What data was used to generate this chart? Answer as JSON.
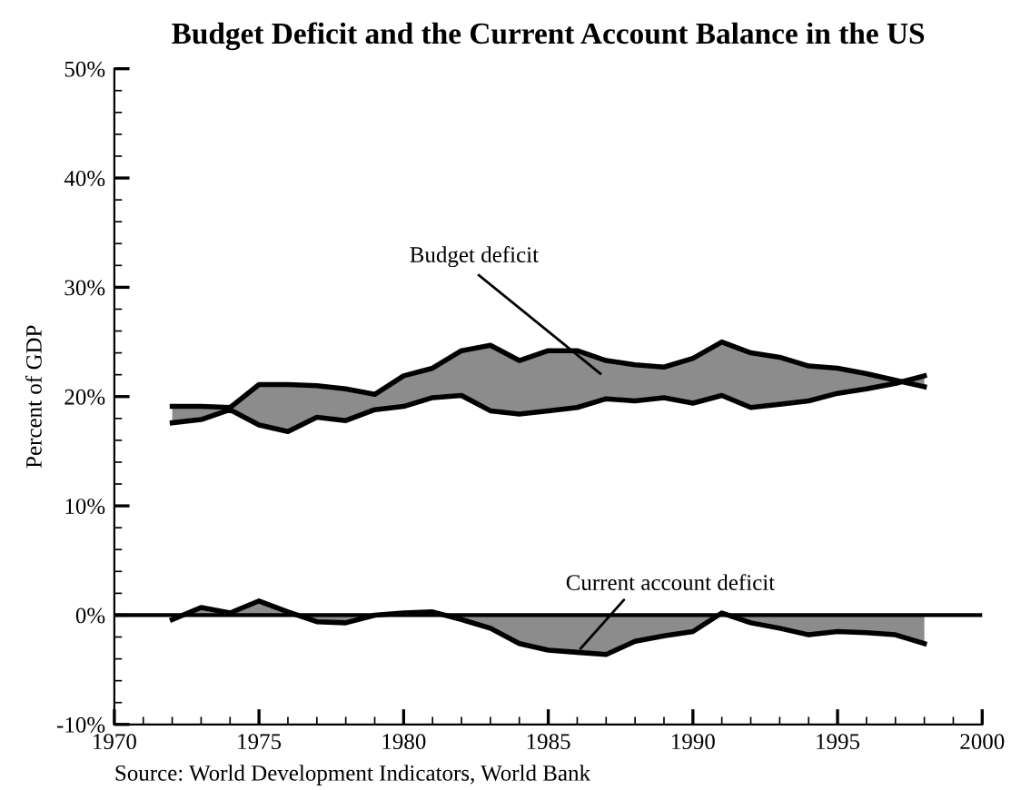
{
  "chart_data": {
    "type": "line",
    "title": "Budget Deficit and the Current Account Balance in the US",
    "ylabel": "Percent of GDP",
    "x": [
      1972,
      1973,
      1974,
      1975,
      1976,
      1977,
      1978,
      1979,
      1980,
      1981,
      1982,
      1983,
      1984,
      1985,
      1986,
      1987,
      1988,
      1989,
      1990,
      1991,
      1992,
      1993,
      1994,
      1995,
      1996,
      1997,
      1998
    ],
    "series": [
      {
        "color": "#000000",
        "values": [
          19.1,
          19.1,
          19.0,
          21.1,
          21.1,
          21.0,
          20.7,
          20.2,
          21.9,
          22.6,
          24.2,
          24.7,
          23.3,
          24.2,
          24.2,
          23.3,
          22.9,
          22.7,
          23.5,
          25.0,
          24.0,
          23.6,
          22.8,
          22.6,
          22.1,
          21.5,
          20.9
        ],
        "lower": [
          17.6,
          17.9,
          18.8,
          17.4,
          16.8,
          18.1,
          17.8,
          18.8,
          19.1,
          19.9,
          20.1,
          18.7,
          18.4,
          18.7,
          19.0,
          19.8,
          19.6,
          19.9,
          19.4,
          20.1,
          19.0,
          19.3,
          19.6,
          20.3,
          20.7,
          21.2,
          21.9
        ],
        "upper": [
          19.1,
          19.1,
          19.0,
          21.1,
          21.1,
          21.0,
          20.7,
          20.2,
          21.9,
          22.6,
          24.2,
          24.7,
          23.3,
          24.2,
          24.2,
          23.3,
          22.9,
          22.7,
          23.5,
          25.0,
          24.0,
          23.6,
          22.8,
          22.6,
          22.1,
          21.5,
          20.9
        ]
      },
      {
        "color": "#000000",
        "values": [
          17.6,
          17.9,
          18.8,
          17.4,
          16.8,
          18.1,
          17.8,
          18.8,
          19.1,
          19.9,
          20.1,
          18.7,
          18.4,
          18.7,
          19.0,
          19.8,
          19.6,
          19.9,
          19.4,
          20.1,
          19.0,
          19.3,
          19.6,
          20.3,
          20.7,
          21.2,
          21.9
        ]
      },
      {
        "type": "area",
        "color": "#8c8c8c",
        "values": [
          -0.4,
          0.7,
          0.2,
          1.3,
          0.3,
          -0.6,
          -0.7,
          0.0,
          0.2,
          0.3,
          -0.4,
          -1.2,
          -2.6,
          -3.2,
          -3.4,
          -3.6,
          -2.4,
          -1.9,
          -1.5,
          0.2,
          -0.7,
          -1.2,
          -1.8,
          -1.5,
          -1.6,
          -1.8,
          -2.6
        ]
      }
    ],
    "xlim": [
      1970,
      2000
    ],
    "xticks": [
      1970,
      1975,
      1980,
      1985,
      1990,
      1995,
      2000
    ],
    "ylim": [
      -10,
      50
    ],
    "yticks": [
      {
        "value": -10,
        "label": "-10%"
      },
      {
        "value": 0,
        "label": "0%"
      },
      {
        "value": 10,
        "label": "10%"
      },
      {
        "value": 20,
        "label": "20%"
      },
      {
        "value": 30,
        "label": "30%"
      },
      {
        "value": 40,
        "label": "40%"
      },
      {
        "value": 50,
        "label": "50%"
      }
    ],
    "ref_lines": [
      {
        "axis": "y",
        "value": 0,
        "color": "#000000"
      }
    ],
    "annotations": [
      "Budget deficit",
      {
        "text": "Current account deficit",
        "x": 1986,
        "y": -3.4
      },
      "Source: World Development Indicators, World Bank"
    ],
    "grid": false,
    "legend": false,
    "marker": "none",
    "line_style": "solid"
  }
}
